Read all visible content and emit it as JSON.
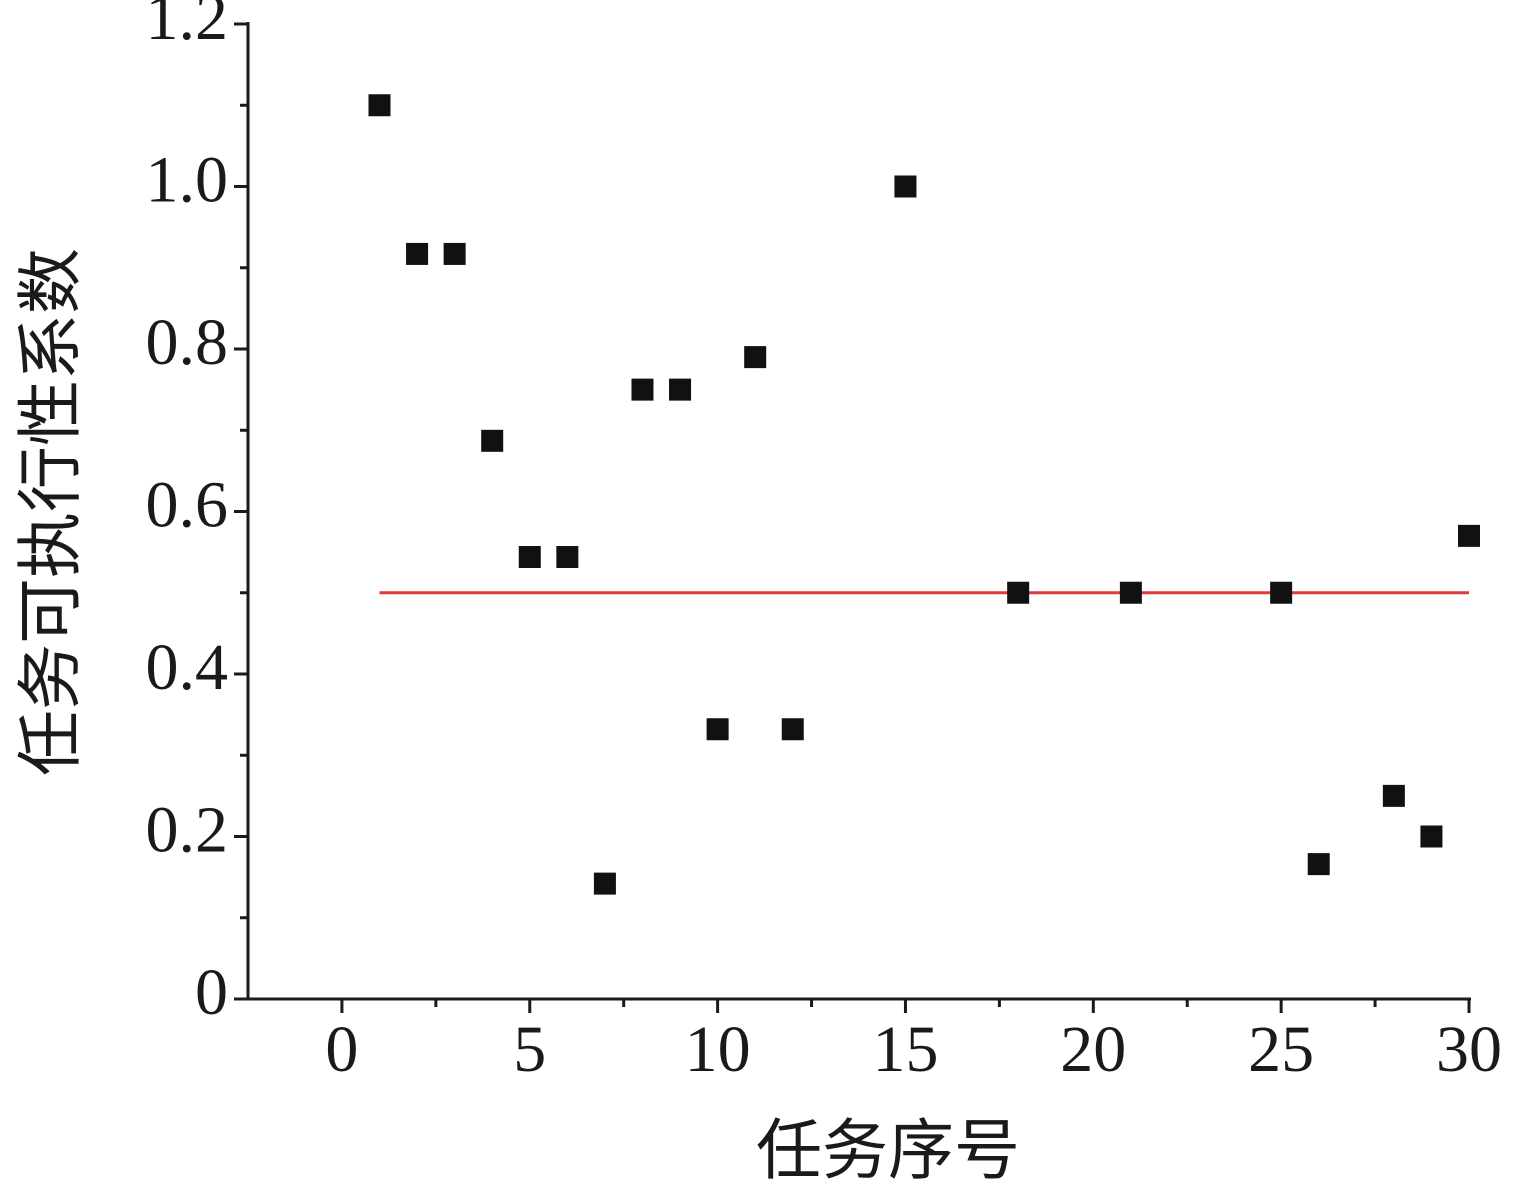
{
  "chart_data": {
    "type": "scatter",
    "x_label": "任务序号",
    "y_label": "任务可执行性系数",
    "x": [
      1,
      2,
      3,
      4,
      5,
      6,
      7,
      8,
      9,
      10,
      11,
      12,
      15,
      18,
      21,
      25,
      26,
      28,
      29,
      30
    ],
    "values": [
      1.1,
      0.917,
      0.917,
      0.687,
      0.544,
      0.544,
      0.142,
      0.75,
      0.75,
      0.332,
      0.79,
      0.332,
      1.0,
      0.5,
      0.5,
      0.5,
      0.166,
      0.25,
      0.2,
      0.57
    ],
    "color": "#111111",
    "xlim": [
      -2.5,
      30
    ],
    "xticks": [
      0,
      5,
      10,
      15,
      20,
      25,
      30
    ],
    "xminorticks": [
      2.5,
      7.5,
      12.5,
      17.5,
      22.5,
      27.5
    ],
    "ylim": [
      0,
      1.2
    ],
    "yticks": [
      0,
      0.2,
      0.4,
      0.6,
      0.8,
      {
        "value": 1,
        "label": "1.0"
      },
      1.2
    ],
    "yminorticks": [
      0.1,
      0.3,
      0.5,
      0.7,
      0.9,
      1.1
    ],
    "reference_line": {
      "y": 0.5,
      "x": [
        1,
        30
      ],
      "color": "#e03a3a"
    }
  }
}
